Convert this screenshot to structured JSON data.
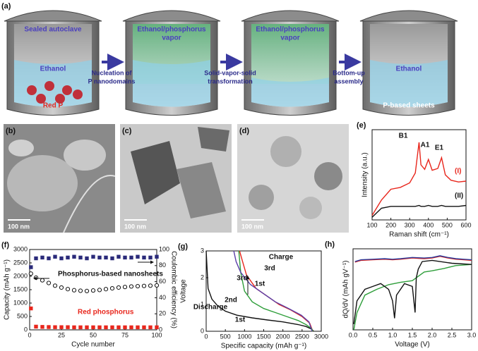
{
  "schematic": {
    "label": "(a)",
    "vessels": [
      {
        "top": [
          "Sealed autoclave"
        ],
        "middle": [
          "Ethanol"
        ],
        "bottom": [
          "Red P"
        ]
      },
      {
        "top": [
          "Ethanol/phosphorus",
          "vapor"
        ],
        "middle": [],
        "bottom": []
      },
      {
        "top": [
          "Ethanol/phosphorus",
          "vapor"
        ],
        "middle": [],
        "bottom": []
      },
      {
        "top": [],
        "middle": [
          "Ethanol"
        ],
        "bottom": [
          "P-based sheets"
        ]
      }
    ],
    "arrows": [
      [
        "Nucleation of",
        "P nanodomains"
      ],
      [
        "Solid-vapor-solid",
        "transformation"
      ],
      [
        "Bottom-up",
        "assembly"
      ]
    ]
  },
  "micrographs": [
    {
      "label": "(b)",
      "scale_bar": "100 nm"
    },
    {
      "label": "(c)",
      "scale_bar": "100 nm"
    },
    {
      "label": "(d)",
      "scale_bar": "100 nm"
    }
  ],
  "chart_data": [
    {
      "type": "line",
      "label": "(e)",
      "y_label": "Intensity (a.u.)",
      "x_label": "Raman shift (cm⁻¹)",
      "xlim": [
        100,
        600
      ],
      "xticks": [
        100,
        200,
        300,
        400,
        500,
        600
      ],
      "ylim": [
        0,
        10
      ],
      "x": [
        100,
        150,
        200,
        250,
        300,
        330,
        350,
        360,
        380,
        400,
        420,
        450,
        470,
        490,
        520,
        560,
        600
      ],
      "series": [
        {
          "name": "(I)",
          "color": "#e8261c",
          "values": [
            0.5,
            2.2,
            3.4,
            3.6,
            4.1,
            5.2,
            8.6,
            6.1,
            5.6,
            6.7,
            5.5,
            5.7,
            6.9,
            5.0,
            4.4,
            4.2,
            4.3
          ]
        },
        {
          "name": "(II)",
          "color": "#111111",
          "values": [
            0.3,
            1.3,
            1.5,
            1.5,
            1.5,
            1.5,
            1.6,
            1.5,
            1.5,
            1.6,
            1.5,
            1.5,
            1.6,
            1.5,
            1.5,
            1.5,
            1.6
          ]
        }
      ],
      "annotations": [
        "B1",
        "A1",
        "E1"
      ]
    },
    {
      "type": "scatter",
      "label": "(f)",
      "y_label": "Capacity (mAh g⁻¹)",
      "y2_label": "Coulombic efficiency (%)",
      "x_label": "Cycle number",
      "xlim": [
        0,
        100
      ],
      "xticks": [
        0,
        25,
        50,
        75,
        100
      ],
      "ylim": [
        0,
        3000
      ],
      "yticks": [
        0,
        500,
        1000,
        1500,
        2000,
        2500,
        3000
      ],
      "y2lim": [
        0,
        100
      ],
      "y2ticks": [
        0,
        20,
        40,
        60,
        80,
        100
      ],
      "x": [
        1,
        5,
        10,
        15,
        20,
        25,
        30,
        35,
        40,
        45,
        50,
        55,
        60,
        65,
        70,
        75,
        80,
        85,
        90,
        95,
        100
      ],
      "series": [
        {
          "name": "Phosphorus-based nanosheets",
          "color": "#111111",
          "marker": "circle",
          "values": [
            2100,
            1950,
            1850,
            1750,
            1650,
            1580,
            1520,
            1480,
            1460,
            1450,
            1470,
            1490,
            1520,
            1550,
            1580,
            1600,
            1620,
            1630,
            1640,
            1650,
            1660
          ]
        },
        {
          "color": "#2b2b7a",
          "marker": "square",
          "axis": "y2",
          "values": [
            78,
            89,
            90,
            89,
            91,
            89,
            90,
            91,
            90,
            89,
            91,
            90,
            90,
            89,
            91,
            90,
            90,
            91,
            90,
            90,
            91
          ]
        },
        {
          "name": "Red phosphorus",
          "color": "#e8261c",
          "marker": "square",
          "values": [
            800,
            120,
            110,
            105,
            100,
            100,
            100,
            95,
            95,
            95,
            95,
            95,
            95,
            95,
            95,
            95,
            95,
            95,
            95,
            95,
            95
          ]
        }
      ]
    },
    {
      "type": "line",
      "label": "(g)",
      "y_label": "Voltage",
      "x_label": "Specific capacity (mAh g⁻¹)",
      "xlim": [
        0,
        3000
      ],
      "xticks": [
        0,
        500,
        1000,
        1500,
        2000,
        2500,
        3000
      ],
      "ylim": [
        0,
        3
      ],
      "yticks": [
        0,
        1,
        2,
        3
      ],
      "series": [
        {
          "color": "#111111",
          "x": [
            0,
            50,
            150,
            300,
            500,
            800,
            1200,
            1600,
            2000,
            2400,
            2600,
            2750,
            2800
          ],
          "values": [
            3,
            1.6,
            1.2,
            0.95,
            0.75,
            0.6,
            0.5,
            0.42,
            0.35,
            0.25,
            0.18,
            0.08,
            0
          ]
        },
        {
          "color": "#e8261c",
          "x": [
            2780,
            2700,
            2500,
            2200,
            1900,
            1600,
            1300,
            1050,
            950,
            870
          ],
          "values": [
            0,
            0.3,
            0.55,
            0.8,
            1.0,
            1.3,
            1.6,
            2.1,
            2.6,
            3
          ]
        },
        {
          "color": "#2e9e3a",
          "x": [
            850,
            900,
            1000,
            1200,
            1500,
            1800,
            2100,
            2400,
            2600,
            2750,
            2780
          ],
          "values": [
            3,
            2.2,
            1.5,
            1.1,
            0.85,
            0.7,
            0.55,
            0.4,
            0.25,
            0.1,
            0
          ]
        },
        {
          "color": "#5a3fa8",
          "x": [
            2760,
            2680,
            2480,
            2150,
            1800,
            1450,
            1150,
            900,
            780,
            720
          ],
          "values": [
            0,
            0.35,
            0.6,
            0.85,
            1.1,
            1.45,
            1.75,
            2.2,
            2.6,
            3
          ]
        }
      ],
      "annotations": [
        "Charge",
        "3rd",
        "1st",
        "3rd",
        "2nd",
        "1st",
        "Discharge"
      ]
    },
    {
      "type": "line",
      "label": "(h)",
      "y_label": "dQ/dV (mAh gV⁻¹)",
      "x_label": "Voltage (V)",
      "xlim": [
        0,
        3
      ],
      "xticks": [
        {
          "value": 0,
          "label": "0.0"
        },
        {
          "value": 0.5,
          "label": "0.5"
        },
        {
          "value": 1,
          "label": "1.0"
        },
        {
          "value": 1.5,
          "label": "1.5"
        },
        {
          "value": 2,
          "label": "2.0"
        },
        {
          "value": 2.5,
          "label": "2.5"
        },
        {
          "value": 3,
          "label": "3.0"
        }
      ],
      "ylim": [
        -10,
        4
      ],
      "series": [
        {
          "color": "#2e9e3a",
          "x": [
            0.02,
            0.1,
            0.3,
            0.6,
            0.9,
            1.2,
            1.5,
            1.6,
            1.8,
            2.0,
            2.3,
            2.6,
            3.0
          ],
          "values": [
            -10,
            -7,
            -4,
            -3,
            -2.2,
            -1.8,
            -1.5,
            -1,
            0,
            0.2,
            0.6,
            1.1,
            1.3
          ]
        },
        {
          "color": "#111111",
          "x": [
            0.02,
            0.1,
            0.3,
            0.5,
            0.7,
            0.9,
            1.0,
            1.05,
            1.1,
            1.3,
            1.5,
            1.57,
            1.6,
            1.65,
            1.75,
            2.0,
            2.5,
            3.0
          ],
          "values": [
            -9,
            -5,
            -3,
            -2.5,
            -2,
            -3,
            -5,
            -8,
            -4,
            -2,
            -2.5,
            -7,
            -1,
            0.5,
            1.8,
            2,
            1.5,
            1.3
          ]
        },
        {
          "color": "#e8261c",
          "x": [
            0.05,
            0.2,
            0.5,
            0.8,
            1.0,
            1.2,
            1.5,
            1.8,
            2.0,
            2.2,
            2.4,
            2.6,
            2.8,
            3.0
          ],
          "values": [
            1.7,
            2.0,
            2.1,
            2.2,
            2.1,
            2.2,
            2.4,
            2.3,
            2.4,
            2.7,
            2.4,
            2.2,
            2.1,
            2.0
          ]
        },
        {
          "color": "#2b3a9a",
          "x": [
            0.05,
            0.2,
            0.5,
            0.8,
            1.0,
            1.2,
            1.5,
            1.8,
            2.0,
            2.2,
            2.4,
            2.6,
            2.8,
            3.0
          ],
          "values": [
            1.8,
            2.1,
            2.2,
            2.3,
            2.2,
            2.3,
            2.5,
            2.4,
            2.5,
            2.8,
            2.5,
            2.3,
            2.2,
            2.1
          ]
        }
      ]
    }
  ]
}
